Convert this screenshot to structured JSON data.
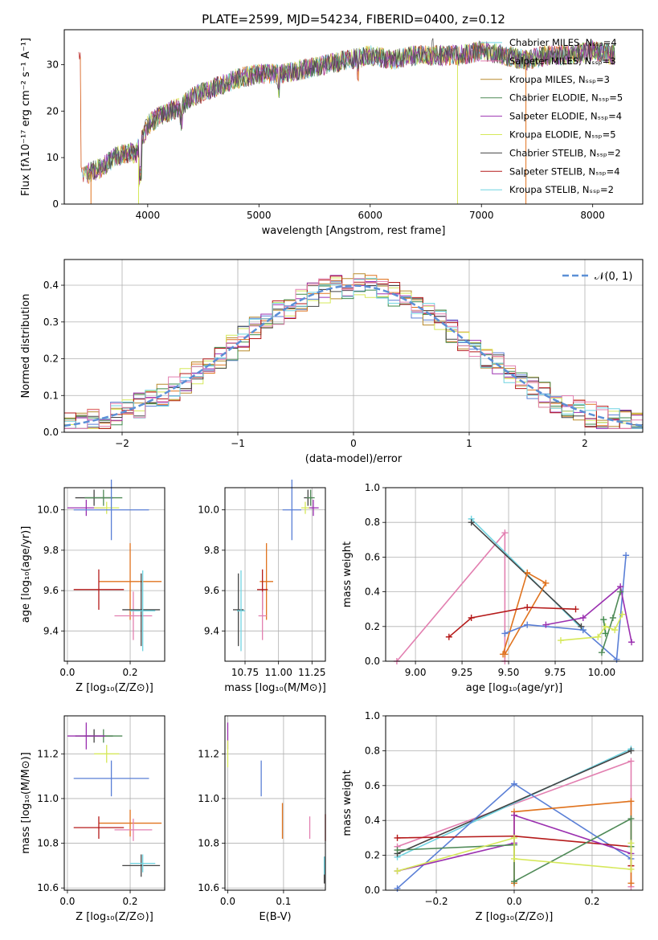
{
  "colors": {
    "blue": "#5a7fd6",
    "orange": "#e0731e",
    "brown": "#b88a2b",
    "green": "#4f8a57",
    "purple": "#9b30b0",
    "yellow": "#d6e85a",
    "gray": "#444444",
    "red": "#b51a1a",
    "cyan": "#6fd3e0",
    "pink": "#e27fb0",
    "stepgreen": "#3e8a4a"
  },
  "chart_data": [
    {
      "type": "line",
      "title": "PLATE=2599, MJD=54234, FIBERID=0400, z=0.12",
      "xlabel": "wavelength [Angstrom, rest frame]",
      "ylabel": "Flux [fλ10⁻¹⁷ erg cm⁻² s⁻¹ A⁻¹]",
      "xlim": [
        3250,
        8450
      ],
      "ylim": [
        0,
        37.5
      ],
      "xticks": [
        "4000",
        "5000",
        "6000",
        "7000",
        "8000"
      ],
      "yticks": [
        "0",
        "10",
        "20",
        "30"
      ],
      "legend": [
        "Chabrier MILES, N_SSP=4",
        "Salpeter MILES, N_SSP=3",
        "Kroupa MILES, N_SSP=3",
        "Chabrier ELODIE, N_SSP=5",
        "Salpeter ELODIE, N_SSP=4",
        "Kroupa ELODIE, N_SSP=5",
        "Chabrier STELIB, N_SSP=2",
        "Salpeter STELIB, N_SSP=4",
        "Kroupa STELIB, N_SSP=2"
      ],
      "legend_placement": "lower right",
      "spectrum": {
        "x": [
          3400,
          3500,
          3600,
          3700,
          3800,
          3900,
          4000,
          4100,
          4200,
          4300,
          4400,
          4500,
          4600,
          4700,
          4800,
          5000,
          5200,
          5400,
          5600,
          5800,
          6000,
          6200,
          6400,
          6600,
          6800,
          7000,
          7200,
          7400,
          7600,
          7800,
          8000,
          8200
        ],
        "y": [
          6,
          7,
          8,
          10,
          11,
          11,
          17,
          19,
          20,
          21,
          23,
          24,
          25,
          26,
          27,
          28,
          28,
          29,
          30,
          31,
          32,
          31,
          32,
          32,
          32,
          33,
          32,
          31,
          32,
          32,
          33,
          32
        ]
      }
    },
    {
      "type": "line",
      "xlabel": "(data-model)/error",
      "ylabel": "Normed distribution",
      "xlim": [
        -2.5,
        2.5
      ],
      "ylim": [
        0,
        0.47
      ],
      "xticks": [
        "−2",
        "−1",
        "0",
        "1",
        "2"
      ],
      "yticks": [
        "0.0",
        "0.1",
        "0.2",
        "0.3",
        "0.4"
      ],
      "legend": [
        "𝒩(0, 1)"
      ],
      "legend_placement": "upper right"
    },
    {
      "type": "scatter",
      "xlabel": "Z [log₁₀(Z/Z⊙)]",
      "ylabel": "age  [log₁₀(age/yr)]",
      "xlim": [
        -0.01,
        0.31
      ],
      "ylim": [
        9.25,
        10.11
      ],
      "xticks": [
        "0.0",
        "0.2"
      ],
      "yticks": [
        "9.4",
        "9.6",
        "9.8",
        "10.0"
      ],
      "points": [
        {
          "c": "gray",
          "x": 0.085,
          "y": 10.06,
          "ex": 0.06,
          "ey": 0.04
        },
        {
          "c": "green",
          "x": 0.115,
          "y": 10.06,
          "ex": 0.06,
          "ey": 0.04
        },
        {
          "c": "purple",
          "x": 0.06,
          "y": 10.01,
          "ex": 0.06,
          "ey": 0.04
        },
        {
          "c": "yellow",
          "x": 0.125,
          "y": 10.01,
          "ex": 0.04,
          "ey": 0.03
        },
        {
          "c": "blue",
          "x": 0.14,
          "y": 10.0,
          "ex": 0.12,
          "ey": 0.15
        },
        {
          "c": "orange",
          "x": 0.2,
          "y": 9.645,
          "ex": 0.1,
          "ey": 0.19
        },
        {
          "c": "red",
          "x": 0.1,
          "y": 9.605,
          "ex": 0.08,
          "ey": 0.1
        },
        {
          "c": "pink",
          "x": 0.21,
          "y": 9.475,
          "ex": 0.06,
          "ey": 0.12
        },
        {
          "c": "gray",
          "x": 0.235,
          "y": 9.505,
          "ex": 0.06,
          "ey": 0.18
        },
        {
          "c": "cyan",
          "x": 0.24,
          "y": 9.5,
          "ex": 0.04,
          "ey": 0.2
        }
      ]
    },
    {
      "type": "scatter",
      "xlabel": "mass [log₁₀(M/M⊙)]",
      "xlim": [
        10.6,
        11.35
      ],
      "ylim": [
        9.25,
        10.11
      ],
      "xticks": [
        "10.75",
        "11.00",
        "11.25"
      ],
      "yticks": [
        "9.4",
        "9.6",
        "9.8",
        "10.0"
      ],
      "points": [
        {
          "c": "gray",
          "x": 11.22,
          "y": 10.06,
          "ex": 0.03,
          "ey": 0.04
        },
        {
          "c": "green",
          "x": 11.24,
          "y": 10.06,
          "ex": 0.03,
          "ey": 0.04
        },
        {
          "c": "purple",
          "x": 11.26,
          "y": 10.01,
          "ex": 0.04,
          "ey": 0.04
        },
        {
          "c": "yellow",
          "x": 11.2,
          "y": 10.01,
          "ex": 0.03,
          "ey": 0.03
        },
        {
          "c": "blue",
          "x": 11.1,
          "y": 10.0,
          "ex": 0.07,
          "ey": 0.15
        },
        {
          "c": "orange",
          "x": 10.91,
          "y": 9.645,
          "ex": 0.05,
          "ey": 0.19
        },
        {
          "c": "red",
          "x": 10.88,
          "y": 9.605,
          "ex": 0.04,
          "ey": 0.1
        },
        {
          "c": "pink",
          "x": 10.88,
          "y": 9.475,
          "ex": 0.03,
          "ey": 0.12
        },
        {
          "c": "gray",
          "x": 10.7,
          "y": 9.505,
          "ex": 0.04,
          "ey": 0.18
        },
        {
          "c": "cyan",
          "x": 10.72,
          "y": 9.5,
          "ex": 0.03,
          "ey": 0.2
        }
      ]
    },
    {
      "type": "line",
      "xlabel": "age  [log₁₀(age/yr)]",
      "ylabel": "mass weight",
      "xlim": [
        8.84,
        10.22
      ],
      "ylim": [
        0,
        1
      ],
      "xticks": [
        "9.00",
        "9.25",
        "9.50",
        "9.75",
        "10.00"
      ],
      "yticks": [
        "0.0",
        "0.2",
        "0.4",
        "0.6",
        "0.8",
        "1.0"
      ],
      "series": [
        {
          "c": "pink",
          "x": [
            8.9,
            9.48,
            9.48
          ],
          "y": [
            0,
            0.74,
            0.0
          ]
        },
        {
          "c": "cyan",
          "x": [
            9.3,
            9.9
          ],
          "y": [
            0.82,
            0.18
          ]
        },
        {
          "c": "gray",
          "x": [
            9.3,
            9.89
          ],
          "y": [
            0.8,
            0.2
          ]
        },
        {
          "c": "orange",
          "x": [
            9.47,
            9.6,
            9.7,
            9.48
          ],
          "y": [
            0.04,
            0.51,
            0.45,
            0.04
          ]
        },
        {
          "c": "blue",
          "x": [
            9.48,
            9.6,
            9.9,
            10.08,
            10.13
          ],
          "y": [
            0.16,
            0.21,
            0.18,
            0.01,
            0.61
          ]
        },
        {
          "c": "red",
          "x": [
            9.18,
            9.3,
            9.6,
            9.86
          ],
          "y": [
            0.14,
            0.25,
            0.31,
            0.3
          ]
        },
        {
          "c": "purple",
          "x": [
            9.7,
            9.9,
            10.1,
            10.16
          ],
          "y": [
            0.21,
            0.25,
            0.43,
            0.11
          ]
        },
        {
          "c": "green",
          "x": [
            10.0,
            10.06,
            10.1
          ],
          "y": [
            0.05,
            0.25,
            0.4
          ]
        },
        {
          "c": "stepgreen",
          "x": [
            10.01,
            10.02
          ],
          "y": [
            0.24,
            0.16
          ]
        },
        {
          "c": "yellow",
          "x": [
            9.78,
            9.98,
            10.02,
            10.07,
            10.11
          ],
          "y": [
            0.12,
            0.14,
            0.2,
            0.18,
            0.27
          ]
        }
      ]
    },
    {
      "type": "scatter",
      "xlabel": "Z [log₁₀(Z/Z⊙)]",
      "ylabel": "mass [log₁₀(M/M⊙)]",
      "xlim": [
        -0.01,
        0.31
      ],
      "ylim": [
        10.59,
        11.37
      ],
      "xticks": [
        "0.0",
        "0.2"
      ],
      "yticks": [
        "10.6",
        "10.8",
        "11.0",
        "11.2"
      ],
      "points": [
        {
          "c": "gray",
          "x": 0.085,
          "y": 11.28,
          "ex": 0.06,
          "ey": 0.03
        },
        {
          "c": "green",
          "x": 0.115,
          "y": 11.28,
          "ex": 0.06,
          "ey": 0.03
        },
        {
          "c": "purple",
          "x": 0.06,
          "y": 11.28,
          "ex": 0.06,
          "ey": 0.06
        },
        {
          "c": "yellow",
          "x": 0.125,
          "y": 11.2,
          "ex": 0.04,
          "ey": 0.04
        },
        {
          "c": "blue",
          "x": 0.14,
          "y": 11.09,
          "ex": 0.12,
          "ey": 0.08
        },
        {
          "c": "orange",
          "x": 0.2,
          "y": 10.89,
          "ex": 0.1,
          "ey": 0.06
        },
        {
          "c": "red",
          "x": 0.1,
          "y": 10.87,
          "ex": 0.08,
          "ey": 0.05
        },
        {
          "c": "pink",
          "x": 0.21,
          "y": 10.86,
          "ex": 0.06,
          "ey": 0.05
        },
        {
          "c": "gray",
          "x": 0.235,
          "y": 10.7,
          "ex": 0.06,
          "ey": 0.05
        },
        {
          "c": "cyan",
          "x": 0.24,
          "y": 10.71,
          "ex": 0.04,
          "ey": 0.04
        }
      ]
    },
    {
      "type": "scatter",
      "xlabel": "E(B-V)",
      "xlim": [
        -0.005,
        0.175
      ],
      "ylim": [
        10.59,
        11.37
      ],
      "xticks": [
        "0.0",
        "0.1"
      ],
      "yticks": [
        "10.6",
        "10.8",
        "11.0",
        "11.2"
      ],
      "points": [
        {
          "c": "purple",
          "x": 0.0,
          "y": 11.28,
          "ex": 0,
          "ey": 0.06
        },
        {
          "c": "yellow",
          "x": 0.0,
          "y": 11.2,
          "ex": 0,
          "ey": 0.06
        },
        {
          "c": "blue",
          "x": 0.06,
          "y": 11.09,
          "ex": 0,
          "ey": 0.08
        },
        {
          "c": "orange",
          "x": 0.098,
          "y": 10.9,
          "ex": 0,
          "ey": 0.08
        },
        {
          "c": "pink",
          "x": 0.147,
          "y": 10.87,
          "ex": 0,
          "ey": 0.05
        },
        {
          "c": "red",
          "x": 0.175,
          "y": 10.87,
          "ex": 0,
          "ey": 0.06
        },
        {
          "c": "gray",
          "x": 0.173,
          "y": 10.68,
          "ex": 0,
          "ey": 0.06
        },
        {
          "c": "cyan",
          "x": 0.173,
          "y": 10.7,
          "ex": 0,
          "ey": 0.04
        }
      ]
    },
    {
      "type": "line",
      "xlabel": "Z [log₁₀(Z/Z⊙)]",
      "ylabel": "mass weight",
      "xlim": [
        -0.33,
        0.33
      ],
      "ylim": [
        0,
        1
      ],
      "xticks": [
        "−0.2",
        "0.0",
        "0.2"
      ],
      "yticks": [
        "0.0",
        "0.2",
        "0.4",
        "0.6",
        "0.8",
        "1.0"
      ],
      "series": [
        {
          "c": "pink",
          "x": [
            -0.3,
            0.3,
            0.3
          ],
          "y": [
            0.25,
            0.74,
            0.02
          ]
        },
        {
          "c": "cyan",
          "x": [
            -0.3,
            0.3
          ],
          "y": [
            0.19,
            0.81
          ]
        },
        {
          "c": "gray",
          "x": [
            -0.3,
            0.3
          ],
          "y": [
            0.21,
            0.8
          ]
        },
        {
          "c": "blue",
          "x": [
            -0.3,
            0.0,
            0.3
          ],
          "y": [
            0.01,
            0.61,
            0.18
          ]
        },
        {
          "c": "orange",
          "x": [
            0.0,
            0.0,
            0.3,
            0.3
          ],
          "y": [
            0.04,
            0.45,
            0.51,
            0.04
          ]
        },
        {
          "c": "red",
          "x": [
            -0.3,
            0.0,
            0.3,
            0.3
          ],
          "y": [
            0.3,
            0.31,
            0.25,
            0.14
          ]
        },
        {
          "c": "purple",
          "x": [
            -0.3,
            0.0,
            0.0,
            0.3
          ],
          "y": [
            0.11,
            0.27,
            0.43,
            0.21
          ]
        },
        {
          "c": "green",
          "x": [
            -0.3,
            0.0,
            0.0,
            0.3,
            0.3
          ],
          "y": [
            0.23,
            0.26,
            0.05,
            0.41,
            0.25
          ]
        },
        {
          "c": "yellow",
          "x": [
            -0.3,
            0.0,
            0.0,
            0.3,
            0.3
          ],
          "y": [
            0.11,
            0.3,
            0.18,
            0.12,
            0.27
          ]
        }
      ]
    }
  ]
}
